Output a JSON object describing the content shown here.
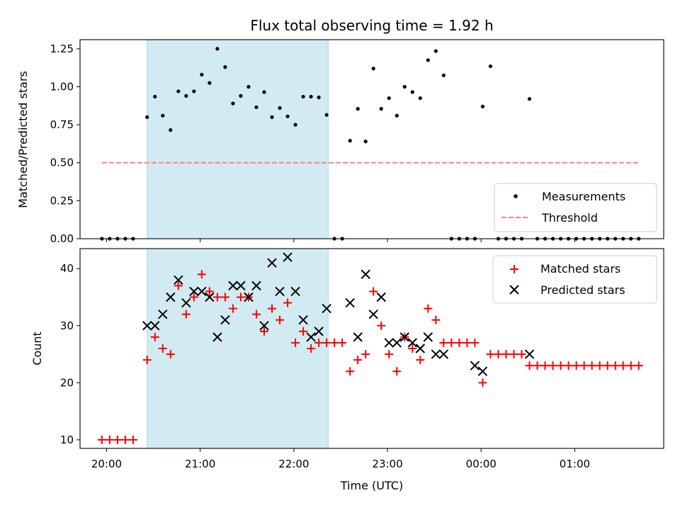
{
  "colors": {
    "measurement": "#000000",
    "threshold": "#ff7f7f",
    "matched": "#ff0000",
    "predicted": "#000000",
    "shade": "#add8e6"
  },
  "chart_data": [
    {
      "type": "scatter",
      "title": "Flux total observing time = 1.92 h",
      "xlabel": "",
      "ylabel": "Matched/Predicted stars",
      "xlim": [
        "19:43",
        "01:57"
      ],
      "ylim": [
        0,
        1.31
      ],
      "yticks": [
        0.0,
        0.25,
        0.5,
        0.75,
        1.0,
        1.25
      ],
      "ytick_labels": [
        "0.00",
        "0.25",
        "0.50",
        "0.75",
        "1.00",
        "1.25"
      ],
      "xticks": [
        "20:00",
        "21:00",
        "22:00",
        "23:00",
        "00:00",
        "01:00"
      ],
      "shaded_region": [
        "20:26",
        "22:22"
      ],
      "legend_position": "lower right",
      "grid": false,
      "series": [
        {
          "name": "Measurements",
          "marker": "dot",
          "points": [
            [
              "19:57",
              0
            ],
            [
              "20:02",
              0
            ],
            [
              "20:07",
              0
            ],
            [
              "20:12",
              0
            ],
            [
              "20:17",
              0
            ],
            [
              "20:26",
              0.8
            ],
            [
              "20:31",
              0.935
            ],
            [
              "20:36",
              0.81
            ],
            [
              "20:41",
              0.715
            ],
            [
              "20:46",
              0.97
            ],
            [
              "20:51",
              0.94
            ],
            [
              "20:56",
              0.97
            ],
            [
              "21:01",
              1.08
            ],
            [
              "21:06",
              1.025
            ],
            [
              "21:11",
              1.25
            ],
            [
              "21:16",
              1.13
            ],
            [
              "21:21",
              0.89
            ],
            [
              "21:26",
              0.94
            ],
            [
              "21:31",
              1.0
            ],
            [
              "21:36",
              0.865
            ],
            [
              "21:41",
              0.965
            ],
            [
              "21:46",
              0.8
            ],
            [
              "21:51",
              0.86
            ],
            [
              "21:56",
              0.805
            ],
            [
              "22:01",
              0.75
            ],
            [
              "22:06",
              0.935
            ],
            [
              "22:11",
              0.935
            ],
            [
              "22:16",
              0.93
            ],
            [
              "22:21",
              0.815
            ],
            [
              "22:26",
              0
            ],
            [
              "22:31",
              0
            ],
            [
              "22:36",
              0.645
            ],
            [
              "22:41",
              0.855
            ],
            [
              "22:46",
              0.64
            ],
            [
              "22:51",
              1.12
            ],
            [
              "22:56",
              0.855
            ],
            [
              "23:01",
              0.925
            ],
            [
              "23:06",
              0.81
            ],
            [
              "23:11",
              1.0
            ],
            [
              "23:16",
              0.965
            ],
            [
              "23:21",
              0.925
            ],
            [
              "23:26",
              1.175
            ],
            [
              "23:31",
              1.235
            ],
            [
              "23:36",
              1.075
            ],
            [
              "23:41",
              0
            ],
            [
              "23:46",
              0
            ],
            [
              "23:51",
              0
            ],
            [
              "23:56",
              0
            ],
            [
              "00:01",
              0.87
            ],
            [
              "00:06",
              1.135
            ],
            [
              "00:11",
              0
            ],
            [
              "00:16",
              0
            ],
            [
              "00:21",
              0
            ],
            [
              "00:26",
              0
            ],
            [
              "00:31",
              0.92
            ],
            [
              "00:36",
              0
            ],
            [
              "00:41",
              0
            ],
            [
              "00:46",
              0
            ],
            [
              "00:51",
              0
            ],
            [
              "00:56",
              0
            ],
            [
              "01:01",
              0
            ],
            [
              "01:06",
              0
            ],
            [
              "01:11",
              0
            ],
            [
              "01:16",
              0
            ],
            [
              "01:21",
              0
            ],
            [
              "01:26",
              0
            ],
            [
              "01:31",
              0
            ],
            [
              "01:36",
              0
            ],
            [
              "01:41",
              0
            ]
          ]
        },
        {
          "name": "Threshold",
          "marker": "dashed-line",
          "points": [
            [
              "19:57",
              0.5
            ],
            [
              "01:41",
              0.5
            ]
          ]
        }
      ]
    },
    {
      "type": "scatter",
      "title": "",
      "xlabel": "Time (UTC)",
      "ylabel": "Count",
      "xlim": [
        "19:43",
        "01:57"
      ],
      "ylim": [
        8.5,
        43.5
      ],
      "yticks": [
        10,
        20,
        30,
        40
      ],
      "ytick_labels": [
        "10",
        "20",
        "30",
        "40"
      ],
      "xticks": [
        "20:00",
        "21:00",
        "22:00",
        "23:00",
        "00:00",
        "01:00"
      ],
      "shaded_region": [
        "20:26",
        "22:22"
      ],
      "legend_position": "upper right",
      "grid": false,
      "series": [
        {
          "name": "Matched stars",
          "marker": "plus",
          "points": [
            [
              "19:57",
              10
            ],
            [
              "20:02",
              10
            ],
            [
              "20:07",
              10
            ],
            [
              "20:12",
              10
            ],
            [
              "20:17",
              10
            ],
            [
              "20:26",
              24
            ],
            [
              "20:31",
              28
            ],
            [
              "20:36",
              26
            ],
            [
              "20:41",
              25
            ],
            [
              "20:46",
              37
            ],
            [
              "20:51",
              32
            ],
            [
              "20:56",
              35
            ],
            [
              "21:01",
              39
            ],
            [
              "21:06",
              36
            ],
            [
              "21:11",
              35
            ],
            [
              "21:16",
              35
            ],
            [
              "21:21",
              33
            ],
            [
              "21:26",
              35
            ],
            [
              "21:31",
              35
            ],
            [
              "21:36",
              32
            ],
            [
              "21:41",
              29
            ],
            [
              "21:46",
              33
            ],
            [
              "21:51",
              31
            ],
            [
              "21:56",
              34
            ],
            [
              "22:01",
              27
            ],
            [
              "22:06",
              29
            ],
            [
              "22:11",
              26
            ],
            [
              "22:16",
              27
            ],
            [
              "22:21",
              27
            ],
            [
              "22:26",
              27
            ],
            [
              "22:31",
              27
            ],
            [
              "22:36",
              22
            ],
            [
              "22:41",
              24
            ],
            [
              "22:46",
              25
            ],
            [
              "22:51",
              36
            ],
            [
              "22:56",
              30
            ],
            [
              "23:01",
              25
            ],
            [
              "23:06",
              22
            ],
            [
              "23:11",
              28
            ],
            [
              "23:16",
              26
            ],
            [
              "23:21",
              24
            ],
            [
              "23:26",
              33
            ],
            [
              "23:31",
              31
            ],
            [
              "23:36",
              27
            ],
            [
              "23:41",
              27
            ],
            [
              "23:46",
              27
            ],
            [
              "23:51",
              27
            ],
            [
              "23:56",
              27
            ],
            [
              "00:01",
              20
            ],
            [
              "00:06",
              25
            ],
            [
              "00:11",
              25
            ],
            [
              "00:16",
              25
            ],
            [
              "00:21",
              25
            ],
            [
              "00:26",
              25
            ],
            [
              "00:31",
              23
            ],
            [
              "00:36",
              23
            ],
            [
              "00:41",
              23
            ],
            [
              "00:46",
              23
            ],
            [
              "00:51",
              23
            ],
            [
              "00:56",
              23
            ],
            [
              "01:01",
              23
            ],
            [
              "01:06",
              23
            ],
            [
              "01:11",
              23
            ],
            [
              "01:16",
              23
            ],
            [
              "01:21",
              23
            ],
            [
              "01:26",
              23
            ],
            [
              "01:31",
              23
            ],
            [
              "01:36",
              23
            ],
            [
              "01:41",
              23
            ]
          ]
        },
        {
          "name": "Predicted stars",
          "marker": "cross",
          "points": [
            [
              "20:26",
              30
            ],
            [
              "20:31",
              30
            ],
            [
              "20:36",
              32
            ],
            [
              "20:41",
              35
            ],
            [
              "20:46",
              38
            ],
            [
              "20:51",
              34
            ],
            [
              "20:56",
              36
            ],
            [
              "21:01",
              36
            ],
            [
              "21:06",
              35
            ],
            [
              "21:11",
              28
            ],
            [
              "21:16",
              31
            ],
            [
              "21:21",
              37
            ],
            [
              "21:26",
              37
            ],
            [
              "21:31",
              35
            ],
            [
              "21:36",
              37
            ],
            [
              "21:41",
              30
            ],
            [
              "21:46",
              41
            ],
            [
              "21:51",
              36
            ],
            [
              "21:56",
              42
            ],
            [
              "22:01",
              36
            ],
            [
              "22:06",
              31
            ],
            [
              "22:11",
              28
            ],
            [
              "22:16",
              29
            ],
            [
              "22:21",
              33
            ],
            [
              "22:36",
              34
            ],
            [
              "22:41",
              28
            ],
            [
              "22:46",
              39
            ],
            [
              "22:51",
              32
            ],
            [
              "22:56",
              35
            ],
            [
              "23:01",
              27
            ],
            [
              "23:06",
              27
            ],
            [
              "23:11",
              28
            ],
            [
              "23:16",
              27
            ],
            [
              "23:21",
              26
            ],
            [
              "23:26",
              28
            ],
            [
              "23:31",
              25
            ],
            [
              "23:36",
              25
            ],
            [
              "23:56",
              23
            ],
            [
              "00:01",
              22
            ],
            [
              "00:31",
              25
            ]
          ]
        }
      ]
    }
  ]
}
